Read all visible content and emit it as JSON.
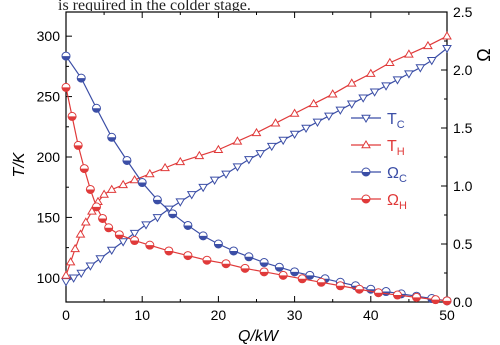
{
  "caption_fragment": "is required in the colder stage.",
  "chart_data": {
    "type": "line",
    "title": "",
    "xlabel": "Q/kW",
    "ylabel": "T/K",
    "ylabel_right": "Ω",
    "xlim": [
      0,
      50
    ],
    "ylim": [
      80,
      320
    ],
    "ylim_right": [
      0,
      2.5
    ],
    "xticks": [
      0,
      10,
      20,
      30,
      40,
      50
    ],
    "yticks": [
      100,
      150,
      200,
      250,
      300
    ],
    "yticks_right": [
      0.0,
      0.5,
      1.0,
      1.5,
      2.0,
      2.5
    ],
    "grid": false,
    "legend_position": "right-middle",
    "series": [
      {
        "name": "T_C",
        "legend_main": "T",
        "legend_sub": "C",
        "axis": "left",
        "color": "#3b4ea6",
        "marker": "triangle-down-open",
        "x": [
          0,
          1.0,
          2.0,
          3.2,
          4.5,
          6.0,
          7.5,
          9.0,
          10.5,
          12.0,
          13.5,
          15.0,
          16.5,
          18.0,
          19.5,
          21.0,
          22.5,
          24.0,
          25.5,
          27.0,
          28.5,
          30.0,
          31.5,
          33.0,
          34.5,
          36.0,
          37.5,
          39.0,
          40.5,
          42.0,
          43.5,
          45.0,
          46.5,
          48.0,
          50.0
        ],
        "values": [
          97,
          100,
          104,
          110,
          116,
          123,
          130,
          137,
          144,
          150,
          157,
          163,
          169,
          175,
          181,
          186,
          192,
          198,
          203,
          209,
          214,
          219,
          224,
          229,
          234,
          239,
          244,
          249,
          254,
          259,
          264,
          269,
          274,
          280,
          290
        ]
      },
      {
        "name": "T_H",
        "legend_main": "T",
        "legend_sub": "H",
        "axis": "left",
        "color": "#e03a3a",
        "marker": "triangle-up-open",
        "x": [
          0,
          0.6,
          1.2,
          1.9,
          2.6,
          3.4,
          4.2,
          5.0,
          6.0,
          7.5,
          9.0,
          11.0,
          13.0,
          15.0,
          17.5,
          20.0,
          22.5,
          25.0,
          27.5,
          30.0,
          32.5,
          35.0,
          37.5,
          40.0,
          42.5,
          45.0,
          47.5,
          50.0
        ],
        "values": [
          102,
          113,
          124,
          136,
          146,
          155,
          163,
          169,
          173,
          177,
          181,
          186,
          191,
          196,
          201,
          206,
          213,
          220,
          228,
          236,
          244,
          252,
          261,
          269,
          278,
          285,
          292,
          300
        ]
      },
      {
        "name": "Ω_C",
        "legend_main": "Ω",
        "legend_sub": "C",
        "axis": "right",
        "color": "#3b4ea6",
        "marker": "circle-half",
        "x": [
          0,
          2.0,
          4.0,
          6.0,
          8.0,
          10.0,
          12.0,
          14.0,
          16.0,
          18.0,
          20.0,
          22.0,
          24.0,
          26.0,
          28.0,
          30.0,
          32.0,
          34.0,
          36.0,
          38.0,
          40.0,
          42.0,
          44.0,
          46.0,
          48.0,
          50.0
        ],
        "values": [
          2.12,
          1.93,
          1.67,
          1.42,
          1.22,
          1.03,
          0.88,
          0.76,
          0.66,
          0.57,
          0.5,
          0.44,
          0.39,
          0.34,
          0.3,
          0.26,
          0.23,
          0.2,
          0.17,
          0.14,
          0.11,
          0.09,
          0.07,
          0.05,
          0.03,
          0.01
        ]
      },
      {
        "name": "Ω_H",
        "legend_main": "Ω",
        "legend_sub": "H",
        "axis": "right",
        "color": "#e03a3a",
        "marker": "circle-half",
        "x": [
          0,
          0.8,
          1.6,
          2.4,
          3.2,
          4.0,
          4.8,
          5.6,
          7.0,
          9.0,
          11.0,
          13.5,
          16.0,
          18.5,
          21.0,
          23.5,
          26.0,
          28.5,
          31.0,
          33.5,
          36.0,
          38.5,
          41.0,
          43.5,
          46.0,
          48.5,
          50.0
        ],
        "values": [
          1.85,
          1.6,
          1.35,
          1.15,
          0.97,
          0.82,
          0.72,
          0.64,
          0.58,
          0.53,
          0.49,
          0.44,
          0.4,
          0.36,
          0.33,
          0.29,
          0.26,
          0.23,
          0.2,
          0.17,
          0.14,
          0.11,
          0.08,
          0.06,
          0.04,
          0.02,
          0.01
        ]
      }
    ]
  }
}
